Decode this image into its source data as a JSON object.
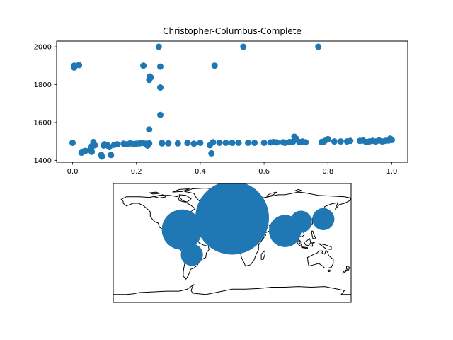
{
  "chart_data": [
    {
      "type": "scatter",
      "title": "Christopher-Columbus-Complete",
      "xlabel": "",
      "ylabel": "",
      "xlim": [
        -0.05,
        1.05
      ],
      "ylim": [
        1390,
        2030
      ],
      "xticks": [
        "0.0",
        "0.2",
        "0.4",
        "0.6",
        "0.8",
        "1.0"
      ],
      "yticks": [
        "1400",
        "1600",
        "1800",
        "2000"
      ],
      "grid": false,
      "color": "#1f77b4",
      "points": [
        [
          0.0,
          1493
        ],
        [
          0.005,
          1900
        ],
        [
          0.005,
          1890
        ],
        [
          0.02,
          1903
        ],
        [
          0.028,
          1440
        ],
        [
          0.035,
          1447
        ],
        [
          0.04,
          1450
        ],
        [
          0.055,
          1455
        ],
        [
          0.058,
          1463
        ],
        [
          0.06,
          1475
        ],
        [
          0.06,
          1445
        ],
        [
          0.065,
          1497
        ],
        [
          0.07,
          1480
        ],
        [
          0.09,
          1428
        ],
        [
          0.092,
          1420
        ],
        [
          0.098,
          1478
        ],
        [
          0.1,
          1485
        ],
        [
          0.11,
          1480
        ],
        [
          0.115,
          1470
        ],
        [
          0.12,
          1428
        ],
        [
          0.13,
          1482
        ],
        [
          0.14,
          1485
        ],
        [
          0.16,
          1488
        ],
        [
          0.17,
          1485
        ],
        [
          0.18,
          1490
        ],
        [
          0.19,
          1487
        ],
        [
          0.2,
          1488
        ],
        [
          0.21,
          1490
        ],
        [
          0.22,
          1492
        ],
        [
          0.222,
          1900
        ],
        [
          0.23,
          1488
        ],
        [
          0.235,
          1478
        ],
        [
          0.24,
          1490
        ],
        [
          0.24,
          1563
        ],
        [
          0.24,
          1825
        ],
        [
          0.242,
          1843
        ],
        [
          0.245,
          1838
        ],
        [
          0.27,
          2000
        ],
        [
          0.275,
          1895
        ],
        [
          0.275,
          1785
        ],
        [
          0.275,
          1640
        ],
        [
          0.28,
          1490
        ],
        [
          0.28,
          1492
        ],
        [
          0.3,
          1490
        ],
        [
          0.33,
          1490
        ],
        [
          0.36,
          1492
        ],
        [
          0.38,
          1488
        ],
        [
          0.4,
          1493
        ],
        [
          0.44,
          1496
        ],
        [
          0.445,
          1900
        ],
        [
          0.435,
          1437
        ],
        [
          0.43,
          1480
        ],
        [
          0.46,
          1493
        ],
        [
          0.48,
          1493
        ],
        [
          0.5,
          1493
        ],
        [
          0.535,
          2000
        ],
        [
          0.52,
          1493
        ],
        [
          0.55,
          1493
        ],
        [
          0.57,
          1493
        ],
        [
          0.6,
          1493
        ],
        [
          0.62,
          1495
        ],
        [
          0.63,
          1497
        ],
        [
          0.64,
          1495
        ],
        [
          0.66,
          1496
        ],
        [
          0.665,
          1493
        ],
        [
          0.68,
          1497
        ],
        [
          0.69,
          1498
        ],
        [
          0.695,
          1525
        ],
        [
          0.7,
          1515
        ],
        [
          0.71,
          1497
        ],
        [
          0.72,
          1500
        ],
        [
          0.73,
          1496
        ],
        [
          0.77,
          2000
        ],
        [
          0.78,
          1497
        ],
        [
          0.785,
          1497
        ],
        [
          0.79,
          1503
        ],
        [
          0.8,
          1512
        ],
        [
          0.82,
          1500
        ],
        [
          0.84,
          1500
        ],
        [
          0.86,
          1500
        ],
        [
          0.87,
          1503
        ],
        [
          0.9,
          1503
        ],
        [
          0.91,
          1505
        ],
        [
          0.92,
          1497
        ],
        [
          0.93,
          1500
        ],
        [
          0.94,
          1503
        ],
        [
          0.95,
          1500
        ],
        [
          0.96,
          1505
        ],
        [
          0.97,
          1500
        ],
        [
          0.98,
          1503
        ],
        [
          0.99,
          1505
        ],
        [
          0.995,
          1515
        ],
        [
          1.0,
          1508
        ]
      ]
    },
    {
      "type": "scatter",
      "title": "",
      "projection": "equirectangular",
      "lonlim": [
        -180,
        180
      ],
      "latlim": [
        -90,
        90
      ],
      "color": "#1f77b4",
      "bubbles": [
        {
          "lon": 0,
          "lat": 38,
          "size": 1.0
        },
        {
          "lon": -76,
          "lat": 20,
          "size": 0.3
        },
        {
          "lon": 80,
          "lat": 18,
          "size": 0.19
        },
        {
          "lon": -61,
          "lat": -18,
          "size": 0.09
        },
        {
          "lon": 104,
          "lat": 32,
          "size": 0.09
        },
        {
          "lon": 138,
          "lat": 36,
          "size": 0.09
        }
      ]
    }
  ]
}
